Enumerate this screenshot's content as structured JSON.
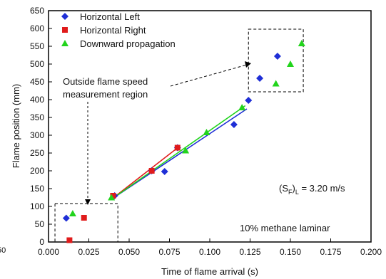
{
  "chart_data": {
    "type": "scatter",
    "xlabel": "Time of flame arrival (s)",
    "ylabel": "Flame position (mm)",
    "xlim": [
      0.0,
      0.2
    ],
    "ylim": [
      0,
      650
    ],
    "x_ticks": [
      "0.000",
      "0.025",
      "0.050",
      "0.075",
      "0.100",
      "0.125",
      "0.150",
      "0.175",
      "0.200"
    ],
    "y_ticks": [
      "0",
      "50",
      "100",
      "150",
      "200",
      "250",
      "300",
      "350",
      "400",
      "450",
      "500",
      "550",
      "600",
      "650"
    ],
    "legend_position": "top-left",
    "grid": false,
    "series": [
      {
        "name": "Horizontal Left",
        "marker": "diamond",
        "color": "#1f2fd6",
        "x": [
          0.011,
          0.041,
          0.064,
          0.072,
          0.08,
          0.115,
          0.124,
          0.131,
          0.142
        ],
        "y": [
          67,
          130,
          200,
          198,
          265,
          330,
          398,
          460,
          522
        ],
        "fit_line": {
          "x": [
            0.039,
            0.123
          ],
          "y": [
            120,
            374
          ]
        }
      },
      {
        "name": "Horizontal Right",
        "marker": "square",
        "color": "#e01b1b",
        "x": [
          0.013,
          0.022,
          0.04,
          0.064,
          0.08
        ],
        "y": [
          5,
          68,
          130,
          200,
          265
        ],
        "fit_line": {
          "x": [
            0.039,
            0.081
          ],
          "y": [
            120,
            268
          ]
        }
      },
      {
        "name": "Downward propagation",
        "marker": "triangle",
        "color": "#22d41c",
        "x": [
          0.015,
          0.039,
          0.085,
          0.098,
          0.12,
          0.141,
          0.15,
          0.157
        ],
        "y": [
          80,
          125,
          257,
          308,
          378,
          445,
          500,
          558
        ],
        "fit_line": {
          "x": [
            0.039,
            0.122
          ],
          "y": [
            120,
            383
          ]
        }
      }
    ],
    "annotations": [
      {
        "text": "Outside flame speed\nmeasurement region"
      },
      {
        "text_main": "(S",
        "text_sub1": "F",
        "text_mid": ")",
        "text_sub2": "L",
        "text_tail": " = 3.20 m/s"
      },
      {
        "text": "10% methane laminar"
      }
    ],
    "partial_text": "50",
    "regions": [
      {
        "x": [
          0.004,
          0.043
        ],
        "y": [
          0,
          108
        ]
      },
      {
        "x": [
          0.124,
          0.158
        ],
        "y": [
          422,
          598
        ]
      }
    ]
  }
}
